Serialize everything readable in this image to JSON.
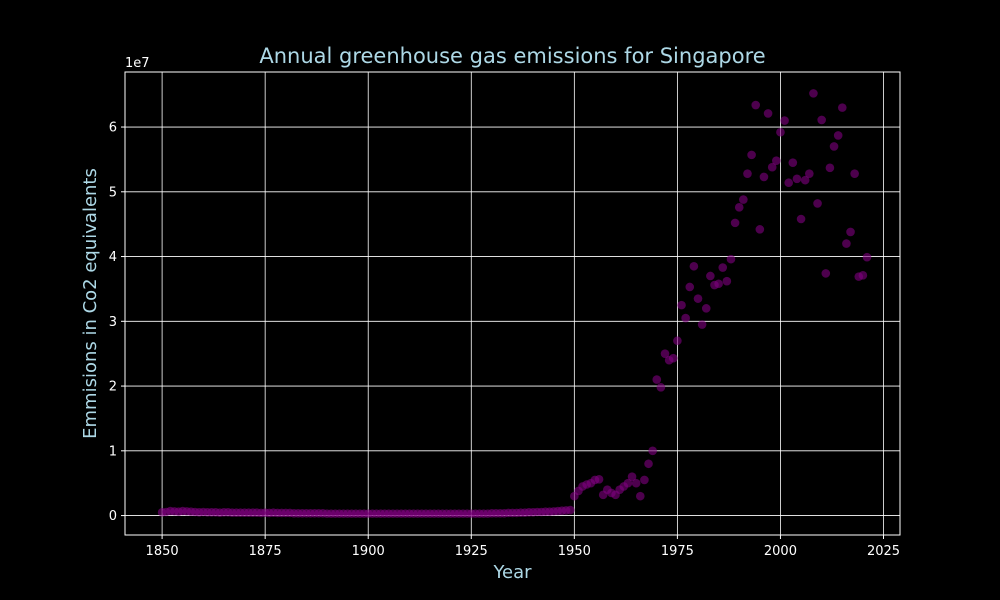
{
  "chart_data": {
    "type": "scatter",
    "title": "Annual greenhouse gas emissions for Singapore",
    "xlabel": "Year",
    "ylabel": "Emmisions in Co2 equivalents",
    "y_offset_label": "1e7",
    "xlim": [
      1841,
      2029
    ],
    "ylim": [
      -3000000,
      68500000
    ],
    "x_ticks": [
      1850,
      1875,
      1900,
      1925,
      1950,
      1975,
      2000,
      2025
    ],
    "y_ticks": [
      0,
      10000000,
      20000000,
      30000000,
      40000000,
      50000000,
      60000000
    ],
    "y_tick_labels": [
      "0",
      "1",
      "2",
      "3",
      "4",
      "5",
      "6"
    ],
    "grid": true,
    "colors": {
      "background": "#000000",
      "marker": "#800080",
      "grid": "#ffffff",
      "axes": "#ffffff",
      "title_text": "#add8e6",
      "tick_text": "#ffffff"
    },
    "series": [
      {
        "x": [
          1850,
          1851,
          1852,
          1853,
          1854,
          1855,
          1856,
          1857,
          1858,
          1859,
          1860,
          1861,
          1862,
          1863,
          1864,
          1865,
          1866,
          1867,
          1868,
          1869,
          1870,
          1871,
          1872,
          1873,
          1874,
          1875,
          1876,
          1877,
          1878,
          1879,
          1880,
          1881,
          1882,
          1883,
          1884,
          1885,
          1886,
          1887,
          1888,
          1889,
          1890,
          1891,
          1892,
          1893,
          1894,
          1895,
          1896,
          1897,
          1898,
          1899,
          1900,
          1901,
          1902,
          1903,
          1904,
          1905,
          1906,
          1907,
          1908,
          1909,
          1910,
          1911,
          1912,
          1913,
          1914,
          1915,
          1916,
          1917,
          1918,
          1919,
          1920,
          1921,
          1922,
          1923,
          1924,
          1925,
          1926,
          1927,
          1928,
          1929,
          1930,
          1931,
          1932,
          1933,
          1934,
          1935,
          1936,
          1937,
          1938,
          1939,
          1940,
          1941,
          1942,
          1943,
          1944,
          1945,
          1946,
          1947,
          1948,
          1949,
          1950,
          1951,
          1952,
          1953,
          1954,
          1955,
          1956,
          1957,
          1958,
          1959,
          1960,
          1961,
          1962,
          1963,
          1964,
          1965,
          1966,
          1967,
          1968,
          1969,
          1970,
          1971,
          1972,
          1973,
          1974,
          1975,
          1976,
          1977,
          1978,
          1979,
          1980,
          1981,
          1982,
          1983,
          1984,
          1985,
          1986,
          1987,
          1988,
          1989,
          1990,
          1991,
          1992,
          1993,
          1994,
          1995,
          1996,
          1997,
          1998,
          1999,
          2000,
          2001,
          2002,
          2003,
          2004,
          2005,
          2006,
          2007,
          2008,
          2009,
          2010,
          2011,
          2012,
          2013,
          2014,
          2015,
          2016,
          2017,
          2018,
          2019,
          2020,
          2021
        ],
        "y": [
          500000,
          550000,
          700000,
          650000,
          600000,
          700000,
          650000,
          600000,
          550000,
          500000,
          550000,
          500000,
          500000,
          500000,
          450000,
          500000,
          500000,
          450000,
          450000,
          450000,
          450000,
          450000,
          450000,
          450000,
          400000,
          450000,
          400000,
          450000,
          400000,
          400000,
          400000,
          400000,
          350000,
          350000,
          350000,
          350000,
          350000,
          350000,
          350000,
          350000,
          300000,
          300000,
          300000,
          300000,
          300000,
          300000,
          300000,
          300000,
          300000,
          300000,
          300000,
          300000,
          300000,
          300000,
          300000,
          300000,
          300000,
          300000,
          300000,
          300000,
          300000,
          300000,
          300000,
          300000,
          300000,
          300000,
          300000,
          300000,
          300000,
          300000,
          300000,
          300000,
          300000,
          300000,
          300000,
          300000,
          300000,
          300000,
          300000,
          300000,
          350000,
          350000,
          350000,
          350000,
          400000,
          400000,
          400000,
          450000,
          450000,
          500000,
          500000,
          550000,
          550000,
          600000,
          600000,
          650000,
          700000,
          750000,
          800000,
          850000,
          3000000,
          3800000,
          4500000,
          4800000,
          5000000,
          5500000,
          5600000,
          3200000,
          4000000,
          3500000,
          3200000,
          4000000,
          4500000,
          5000000,
          6000000,
          5000000,
          3000000,
          5500000,
          8000000,
          10000000,
          21000000,
          19800000,
          25000000,
          24000000,
          24300000,
          27000000,
          32500000,
          30500000,
          35300000,
          38500000,
          33500000,
          29500000,
          32000000,
          37000000,
          35600000,
          35800000,
          38300000,
          36200000,
          39600000,
          45200000,
          47600000,
          48800000,
          52800000,
          55700000,
          63400000,
          44200000,
          52300000,
          62100000,
          53800000,
          54800000,
          59200000,
          61000000,
          51400000,
          54500000,
          52000000,
          45800000,
          51800000,
          52800000,
          65200000,
          48200000,
          61100000,
          37400000,
          53700000,
          57000000,
          58700000,
          63000000,
          42000000,
          43800000,
          52800000,
          36900000,
          37100000,
          39900000
        ]
      }
    ]
  }
}
